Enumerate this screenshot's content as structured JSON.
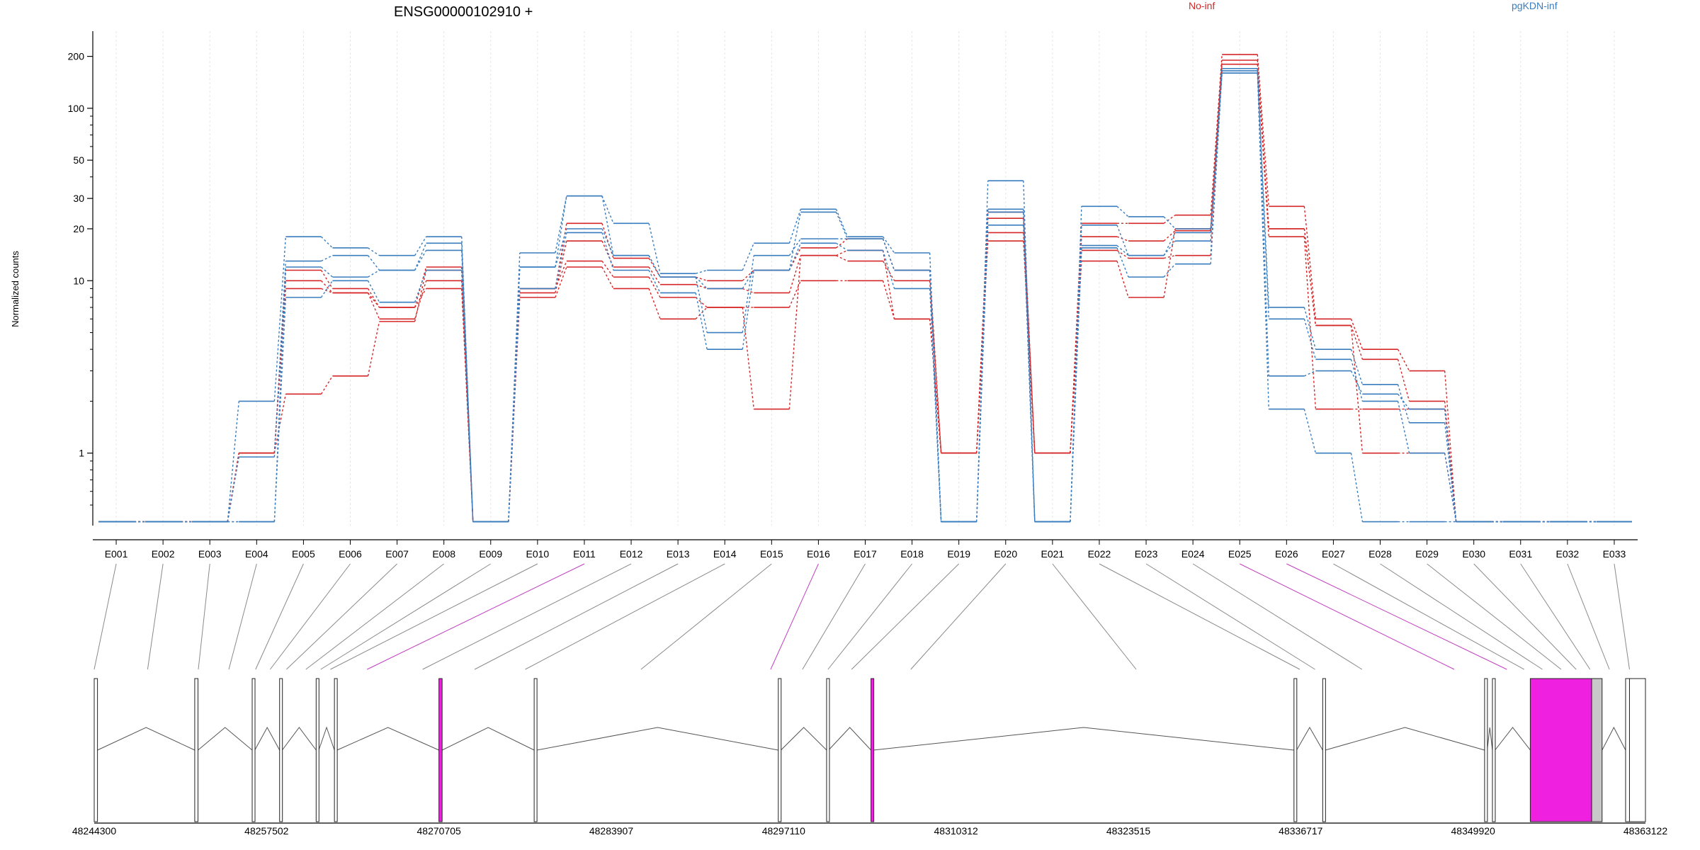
{
  "chart_data": {
    "type": "line",
    "title": "ENSG00000102910 +",
    "ylabel": "Normalized counts",
    "xlabel": "",
    "y_scale": "log",
    "ylim": [
      0.38,
      280
    ],
    "y_ticks": [
      1,
      10,
      20,
      30,
      50,
      100,
      200
    ],
    "y_tick_labels": [
      "1",
      "10",
      "20",
      "30",
      "50",
      "100",
      "200"
    ],
    "grid": true,
    "legend_placement": "top",
    "legend": [
      {
        "label": "No-inf",
        "color": "#d62728"
      },
      {
        "label": "pgKDN-inf",
        "color": "#3a7dbf"
      }
    ],
    "categories": [
      "E001",
      "E002",
      "E003",
      "E004",
      "E005",
      "E006",
      "E007",
      "E008",
      "E009",
      "E010",
      "E011",
      "E012",
      "E013",
      "E014",
      "E015",
      "E016",
      "E017",
      "E018",
      "E019",
      "E020",
      "E021",
      "E022",
      "E023",
      "E024",
      "E025",
      "E026",
      "E027",
      "E028",
      "E029",
      "E030",
      "E031",
      "E032",
      "E033"
    ],
    "series": [
      {
        "group": "No-inf",
        "color": "#d62728",
        "values": [
          0.4,
          0.4,
          0.4,
          1.0,
          11.5,
          9.0,
          7.0,
          12.0,
          0.4,
          9.0,
          21.5,
          13.5,
          10.5,
          10.0,
          11.5,
          15.5,
          17.5,
          11.5,
          1.0,
          25.0,
          1.0,
          21.5,
          21.5,
          24.0,
          205,
          27.0,
          6.0,
          4.0,
          3.0,
          0.4,
          0.4,
          0.4,
          0.4
        ]
      },
      {
        "group": "No-inf",
        "color": "#d62728",
        "values": [
          0.4,
          0.4,
          0.4,
          1.0,
          10.0,
          8.5,
          6.0,
          10.0,
          0.4,
          8.5,
          17.0,
          12.0,
          9.5,
          9.0,
          8.5,
          14.0,
          13.0,
          10.0,
          1.0,
          19.0,
          1.0,
          18.0,
          17.0,
          19.5,
          190,
          20.0,
          5.5,
          3.5,
          2.0,
          0.4,
          0.4,
          0.4,
          0.4
        ]
      },
      {
        "group": "No-inf",
        "color": "#d62728",
        "values": [
          0.4,
          0.4,
          0.4,
          1.0,
          2.2,
          2.8,
          5.8,
          11.5,
          0.4,
          9.0,
          13.0,
          10.5,
          8.0,
          7.0,
          1.8,
          14.0,
          15.0,
          6.0,
          1.0,
          23.0,
          1.0,
          15.0,
          13.5,
          14.0,
          170,
          18.0,
          1.8,
          1.8,
          1.8,
          0.4,
          0.4,
          0.4,
          0.4
        ]
      },
      {
        "group": "No-inf",
        "color": "#d62728",
        "values": [
          0.4,
          0.4,
          0.4,
          1.0,
          9.0,
          8.5,
          7.0,
          9.0,
          0.4,
          8.0,
          12.0,
          9.0,
          6.0,
          7.0,
          7.0,
          10.0,
          10.0,
          6.0,
          1.0,
          17.0,
          1.0,
          13.0,
          8.0,
          20.0,
          180,
          20.0,
          5.5,
          1.0,
          1.0,
          0.4,
          0.4,
          0.4,
          0.4
        ]
      },
      {
        "group": "pgKDN-inf",
        "color": "#3a7dbf",
        "values": [
          0.4,
          0.4,
          0.4,
          2.0,
          18.0,
          15.5,
          14.0,
          18.0,
          0.4,
          14.5,
          31.0,
          21.5,
          11.0,
          11.5,
          16.5,
          26.0,
          18.0,
          14.5,
          0.4,
          38.0,
          0.4,
          27.0,
          23.5,
          20.0,
          165,
          7.0,
          4.0,
          2.5,
          1.5,
          0.4,
          0.4,
          0.4,
          0.4
        ]
      },
      {
        "group": "pgKDN-inf",
        "color": "#3a7dbf",
        "values": [
          0.4,
          0.4,
          0.4,
          0.95,
          13.0,
          14.0,
          11.5,
          16.5,
          0.4,
          12.0,
          31.0,
          14.0,
          10.5,
          9.0,
          11.5,
          25.0,
          17.5,
          11.5,
          0.4,
          25.0,
          0.4,
          21.0,
          14.0,
          19.0,
          170,
          2.8,
          3.0,
          2.2,
          1.8,
          0.4,
          0.4,
          0.4,
          0.4
        ]
      },
      {
        "group": "pgKDN-inf",
        "color": "#3a7dbf",
        "values": [
          0.4,
          0.4,
          0.4,
          0.4,
          12.0,
          10.5,
          11.5,
          15.0,
          0.4,
          12.0,
          20.0,
          14.0,
          10.5,
          5.0,
          14.0,
          17.5,
          17.5,
          11.5,
          0.4,
          21.0,
          0.4,
          16.0,
          14.0,
          17.0,
          160,
          6.0,
          3.5,
          2.0,
          1.0,
          0.4,
          0.4,
          0.4,
          0.4
        ]
      },
      {
        "group": "pgKDN-inf",
        "color": "#3a7dbf",
        "values": [
          0.4,
          0.4,
          0.4,
          0.4,
          8.0,
          10.0,
          7.5,
          11.5,
          0.4,
          9.0,
          19.0,
          11.5,
          8.5,
          4.0,
          11.5,
          16.5,
          15.0,
          9.0,
          0.4,
          26.0,
          0.4,
          15.5,
          10.5,
          12.5,
          160,
          1.8,
          1.0,
          0.4,
          0.4,
          0.4,
          0.4,
          0.4,
          0.4
        ]
      }
    ],
    "gene_model": {
      "coordinates": [
        "48244300",
        "48257502",
        "48270705",
        "48283907",
        "48297110",
        "48310312",
        "48323515",
        "48336717",
        "48349920",
        "48363122"
      ],
      "coord_range": [
        48244300,
        48363122
      ],
      "exon_positions": [
        48244300,
        48252000,
        48256400,
        48258500,
        48261300,
        48262700,
        48270705,
        48278000,
        48296700,
        48300400,
        48303800,
        48336300,
        48338500,
        48351800,
        48354300,
        48357000,
        48359000,
        48361900
      ],
      "highlighted_exons": [
        "E011",
        "E016",
        "E025",
        "E026"
      ],
      "highlight_color": "#f020e0",
      "exon_blocks": [
        {
          "start": 48244300,
          "end": 48244550,
          "fill": "#ffffff"
        },
        {
          "start": 48252000,
          "end": 48252250,
          "fill": "#ffffff"
        },
        {
          "start": 48256400,
          "end": 48256600,
          "fill": "#ffffff"
        },
        {
          "start": 48258500,
          "end": 48258700,
          "fill": "#ffffff"
        },
        {
          "start": 48261300,
          "end": 48261500,
          "fill": "#ffffff"
        },
        {
          "start": 48262700,
          "end": 48262900,
          "fill": "#ffffff"
        },
        {
          "start": 48270705,
          "end": 48270950,
          "fill": "#f020e0"
        },
        {
          "start": 48278000,
          "end": 48278200,
          "fill": "#ffffff"
        },
        {
          "start": 48296700,
          "end": 48296900,
          "fill": "#ffffff"
        },
        {
          "start": 48300400,
          "end": 48300550,
          "fill": "#ffffff"
        },
        {
          "start": 48303800,
          "end": 48303980,
          "fill": "#f020e0"
        },
        {
          "start": 48336200,
          "end": 48336400,
          "fill": "#ffffff"
        },
        {
          "start": 48338400,
          "end": 48338600,
          "fill": "#ffffff"
        },
        {
          "start": 48350800,
          "end": 48351000,
          "fill": "#ffffff"
        },
        {
          "start": 48351400,
          "end": 48351600,
          "fill": "#ffffff"
        },
        {
          "start": 48354300,
          "end": 48359000,
          "fill": "#f020e0"
        },
        {
          "start": 48359000,
          "end": 48359800,
          "fill": "#c8c8c8"
        },
        {
          "start": 48361600,
          "end": 48361900,
          "fill": "#ffffff"
        },
        {
          "start": 48361900,
          "end": 48363122,
          "fill": "#ffffff"
        }
      ]
    }
  }
}
